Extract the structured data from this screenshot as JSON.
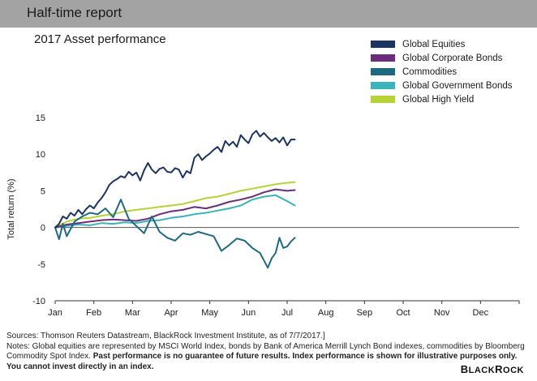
{
  "header": {
    "title": "Half-time report"
  },
  "chart_data": {
    "type": "line",
    "title": "2017 Asset performance",
    "xlabel": "",
    "ylabel": "Total return (%)",
    "ylim": [
      -10,
      15
    ],
    "yticks": [
      15,
      10,
      5,
      0,
      -5,
      -10
    ],
    "categories": [
      "Jan",
      "Feb",
      "Mar",
      "Apr",
      "May",
      "Jun",
      "Jul",
      "Aug",
      "Sep",
      "Oct",
      "Nov",
      "Dec"
    ],
    "x_unit": "month index (0 = start of Jan, 12 = end of Dec)",
    "grid": {
      "y": false,
      "x": false
    },
    "legend_position": "top-right",
    "series": [
      {
        "name": "Global Equities",
        "color": "#1c3461",
        "x": [
          0,
          0.1,
          0.2,
          0.3,
          0.4,
          0.5,
          0.6,
          0.7,
          0.8,
          0.9,
          1.0,
          1.1,
          1.2,
          1.3,
          1.4,
          1.5,
          1.6,
          1.7,
          1.8,
          1.9,
          2.0,
          2.1,
          2.2,
          2.3,
          2.4,
          2.5,
          2.6,
          2.7,
          2.8,
          2.9,
          3.0,
          3.1,
          3.2,
          3.3,
          3.4,
          3.5,
          3.6,
          3.7,
          3.8,
          3.9,
          4.0,
          4.1,
          4.2,
          4.3,
          4.4,
          4.5,
          4.6,
          4.7,
          4.8,
          4.9,
          5.0,
          5.1,
          5.2,
          5.3,
          5.4,
          5.5,
          5.6,
          5.7,
          5.8,
          5.9,
          6.0,
          6.1,
          6.2
        ],
        "values": [
          0,
          0.5,
          1.5,
          1.2,
          2,
          1.6,
          2.4,
          1.8,
          2.5,
          3,
          2.6,
          3.4,
          4,
          4.8,
          5.8,
          6.3,
          6.6,
          7,
          6.8,
          7.6,
          7.1,
          7.5,
          6.4,
          7.8,
          8.8,
          7.9,
          7.4,
          8,
          8.2,
          7.6,
          7.5,
          8.1,
          7.9,
          6.8,
          7.7,
          7.4,
          9.5,
          10,
          9.2,
          9.7,
          10.1,
          10.6,
          11,
          10.3,
          11.8,
          11.2,
          11.7,
          11,
          12.6,
          12,
          11.5,
          12.7,
          13.2,
          12.4,
          12.9,
          12.3,
          11.8,
          12.2,
          11.6,
          12.3,
          11.2,
          12,
          12
        ]
      },
      {
        "name": "Global Corporate Bonds",
        "color": "#6b2d7b",
        "x": [
          0,
          0.3,
          0.6,
          0.9,
          1.2,
          1.5,
          1.8,
          2.1,
          2.4,
          2.7,
          3.0,
          3.3,
          3.6,
          3.9,
          4.2,
          4.5,
          4.8,
          5.1,
          5.4,
          5.7,
          6.0,
          6.2
        ],
        "values": [
          0,
          0.4,
          0.6,
          0.8,
          1.0,
          1.1,
          1.0,
          0.9,
          1.2,
          1.8,
          2.2,
          2.4,
          2.8,
          2.6,
          3.0,
          3.5,
          3.8,
          4.2,
          4.8,
          5.2,
          5.0,
          5.1
        ]
      },
      {
        "name": "Commodities",
        "color": "#1d6a80",
        "x": [
          0,
          0.1,
          0.2,
          0.3,
          0.5,
          0.7,
          0.9,
          1.1,
          1.3,
          1.5,
          1.7,
          1.9,
          2.1,
          2.3,
          2.5,
          2.7,
          2.9,
          3.1,
          3.3,
          3.5,
          3.7,
          3.9,
          4.1,
          4.3,
          4.5,
          4.7,
          4.9,
          5.1,
          5.3,
          5.5,
          5.6,
          5.7,
          5.8,
          5.9,
          6.0,
          6.1,
          6.2
        ],
        "values": [
          0,
          -1.6,
          0.5,
          -1.2,
          0.8,
          1.5,
          2.0,
          1.8,
          2.6,
          1.4,
          3.8,
          1.2,
          0.2,
          -0.8,
          1.5,
          -0.6,
          -1.4,
          -1.8,
          -0.8,
          -1.0,
          -0.6,
          -0.9,
          -1.2,
          -3.2,
          -2.4,
          -1.5,
          -1.8,
          -2.8,
          -3.5,
          -5.5,
          -4.2,
          -3.5,
          -1.4,
          -2.8,
          -2.6,
          -1.9,
          -1.4
        ]
      },
      {
        "name": "Global Government Bonds",
        "color": "#3bb3b8",
        "x": [
          0,
          0.3,
          0.6,
          0.9,
          1.2,
          1.5,
          1.8,
          2.1,
          2.4,
          2.7,
          3.0,
          3.3,
          3.6,
          3.9,
          4.2,
          4.5,
          4.8,
          5.1,
          5.4,
          5.7,
          6.0,
          6.2
        ],
        "values": [
          0,
          0.2,
          0.4,
          0.3,
          0.6,
          0.5,
          0.7,
          0.6,
          0.9,
          1.0,
          1.3,
          1.5,
          1.8,
          2.0,
          2.3,
          2.6,
          3.0,
          3.8,
          4.2,
          4.4,
          3.6,
          3.0
        ]
      },
      {
        "name": "Global High Yield",
        "color": "#b5d334",
        "x": [
          0,
          0.3,
          0.6,
          0.9,
          1.2,
          1.5,
          1.8,
          2.1,
          2.4,
          2.7,
          3.0,
          3.3,
          3.6,
          3.9,
          4.2,
          4.5,
          4.8,
          5.1,
          5.4,
          5.7,
          6.0,
          6.2
        ],
        "values": [
          0,
          0.8,
          1.2,
          1.3,
          1.6,
          1.8,
          2.2,
          2.4,
          2.6,
          2.8,
          3.0,
          3.2,
          3.6,
          4.0,
          4.2,
          4.6,
          5.0,
          5.3,
          5.6,
          5.9,
          6.1,
          6.2
        ]
      }
    ]
  },
  "notes": {
    "line1": "Sources: Thomson Reuters Datastream, BlackRock Investment Institute, as of 7/7/2017.]",
    "line2_plain": "Notes: Global equities are represented by MSCI World Index, bonds by Bank of America Merrill Lynch Bond indexes, commodities by Bloomberg Commodity Spot Index. ",
    "line2_bold": "Past performance is no guarantee of future results. Index performance is shown for illustrative purposes only. You cannot invest directly in an index."
  },
  "logo": {
    "text": "BlackRock"
  }
}
